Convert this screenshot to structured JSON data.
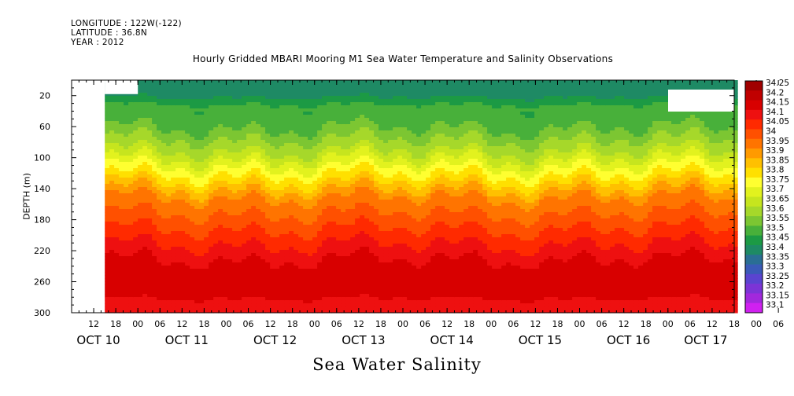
{
  "header": {
    "longitude": "LONGITUDE : 122W(-122)",
    "latitude": "LATITUDE : 36.8N",
    "year": "YEAR : 2012"
  },
  "title": "Hourly Gridded MBARI Mooring M1 Sea Water Temperature and Salinity Observations",
  "bottom_title": "Sea Water Salinity",
  "ylabel": "DEPTH (m)",
  "chart_data": {
    "type": "heatmap",
    "title": "Hourly Gridded MBARI Mooring M1 Sea Water Temperature and Salinity Observations",
    "variable": "Sea Water Salinity",
    "ylabel": "DEPTH (m)",
    "ylim": [
      300,
      0
    ],
    "y_reversed": true,
    "y_ticks": [
      20,
      60,
      100,
      140,
      180,
      220,
      260,
      300
    ],
    "x_range": [
      "2012-10-10 06:00",
      "2012-10-17 18:00"
    ],
    "x_hour_ticks": [
      "12",
      "18",
      "00",
      "06",
      "12",
      "18",
      "00",
      "06",
      "12",
      "18",
      "00",
      "06",
      "12",
      "18",
      "00",
      "06",
      "12",
      "18",
      "00",
      "06",
      "12",
      "18",
      "00",
      "06",
      "12",
      "18",
      "00",
      "06",
      "12",
      "18",
      "00",
      "06"
    ],
    "x_day_labels": [
      "OCT 10",
      "OCT 11",
      "OCT 12",
      "OCT 13",
      "OCT 14",
      "OCT 15",
      "OCT 16",
      "OCT 17"
    ],
    "data_start": "2012-10-10 15:00",
    "colorbar_levels": [
      "34.25",
      "34.2",
      "34.15",
      "34.1",
      "34.05",
      "34",
      "33.95",
      "33.9",
      "33.85",
      "33.8",
      "33.75",
      "33.7",
      "33.65",
      "33.6",
      "33.55",
      "33.5",
      "33.45",
      "33.4",
      "33.35",
      "33.3",
      "33.25",
      "33.2",
      "33.15",
      "33.1"
    ],
    "colorbar_colors": [
      "#a00000",
      "#c00000",
      "#d80000",
      "#ee1010",
      "#ff2a00",
      "#ff5000",
      "#ff7400",
      "#ff9a00",
      "#ffc000",
      "#ffe000",
      "#ffff30",
      "#e2f21e",
      "#c6e51e",
      "#a6d82a",
      "#7cc632",
      "#48b03a",
      "#1c9a44",
      "#1e8a64",
      "#2a6e94",
      "#3a5ab8",
      "#5a44d0",
      "#7c34d6",
      "#a228dc",
      "#d020f0"
    ],
    "depth_profile_salinity": [
      {
        "depth": 10,
        "value": 33.4
      },
      {
        "depth": 30,
        "value": 33.5
      },
      {
        "depth": 60,
        "value": 33.55
      },
      {
        "depth": 90,
        "value": 33.65
      },
      {
        "depth": 110,
        "value": 33.75
      },
      {
        "depth": 130,
        "value": 33.85
      },
      {
        "depth": 150,
        "value": 33.95
      },
      {
        "depth": 170,
        "value": 34.0
      },
      {
        "depth": 190,
        "value": 34.05
      },
      {
        "depth": 210,
        "value": 34.1
      },
      {
        "depth": 230,
        "value": 34.15
      },
      {
        "depth": 255,
        "value": 34.2
      },
      {
        "depth": 280,
        "value": 34.15
      },
      {
        "depth": 300,
        "value": 34.1
      }
    ]
  }
}
